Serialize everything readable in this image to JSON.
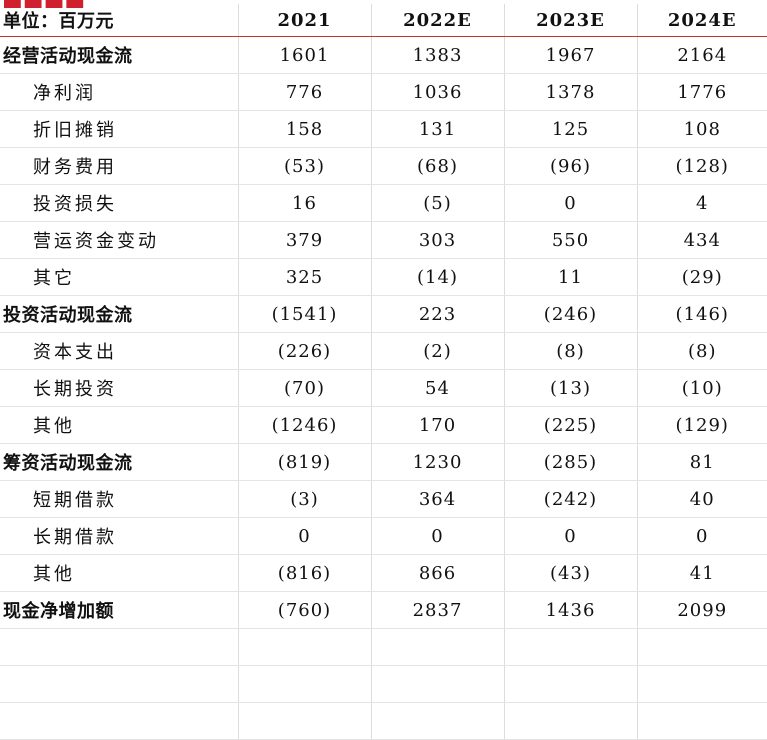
{
  "header": {
    "unit_label": "单位：百万元",
    "years": [
      "2021",
      "2022E",
      "2023E",
      "2024E"
    ]
  },
  "rows": [
    {
      "label": "经营活动现金流",
      "bold": true,
      "values": [
        "1601",
        "1383",
        "1967",
        "2164"
      ]
    },
    {
      "label": "净利润",
      "bold": false,
      "values": [
        "776",
        "1036",
        "1378",
        "1776"
      ]
    },
    {
      "label": "折旧摊销",
      "bold": false,
      "values": [
        "158",
        "131",
        "125",
        "108"
      ]
    },
    {
      "label": "财务费用",
      "bold": false,
      "values": [
        "(53)",
        "(68)",
        "(96)",
        "(128)"
      ]
    },
    {
      "label": "投资损失",
      "bold": false,
      "values": [
        "16",
        "(5)",
        "0",
        "4"
      ]
    },
    {
      "label": "营运资金变动",
      "bold": false,
      "values": [
        "379",
        "303",
        "550",
        "434"
      ]
    },
    {
      "label": "其它",
      "bold": false,
      "values": [
        "325",
        "(14)",
        "11",
        "(29)"
      ]
    },
    {
      "label": "投资活动现金流",
      "bold": true,
      "values": [
        "(1541)",
        "223",
        "(246)",
        "(146)"
      ]
    },
    {
      "label": "资本支出",
      "bold": false,
      "values": [
        "(226)",
        "(2)",
        "(8)",
        "(8)"
      ]
    },
    {
      "label": "长期投资",
      "bold": false,
      "values": [
        "(70)",
        "54",
        "(13)",
        "(10)"
      ]
    },
    {
      "label": "其他",
      "bold": false,
      "values": [
        "(1246)",
        "170",
        "(225)",
        "(129)"
      ]
    },
    {
      "label": "筹资活动现金流",
      "bold": true,
      "values": [
        "(819)",
        "1230",
        "(285)",
        "81"
      ]
    },
    {
      "label": "短期借款",
      "bold": false,
      "values": [
        "(3)",
        "364",
        "(242)",
        "40"
      ]
    },
    {
      "label": "长期借款",
      "bold": false,
      "values": [
        "0",
        "0",
        "0",
        "0"
      ]
    },
    {
      "label": "其他",
      "bold": false,
      "values": [
        "(816)",
        "866",
        "(43)",
        "41"
      ]
    },
    {
      "label": "现金净增加额",
      "bold": true,
      "values": [
        "(760)",
        "2837",
        "1436",
        "2099"
      ]
    }
  ],
  "empty_rows": 3,
  "colors": {
    "title_red": "#d0202e",
    "header_rule": "#c0392b",
    "grid": "#dcdcdc"
  }
}
